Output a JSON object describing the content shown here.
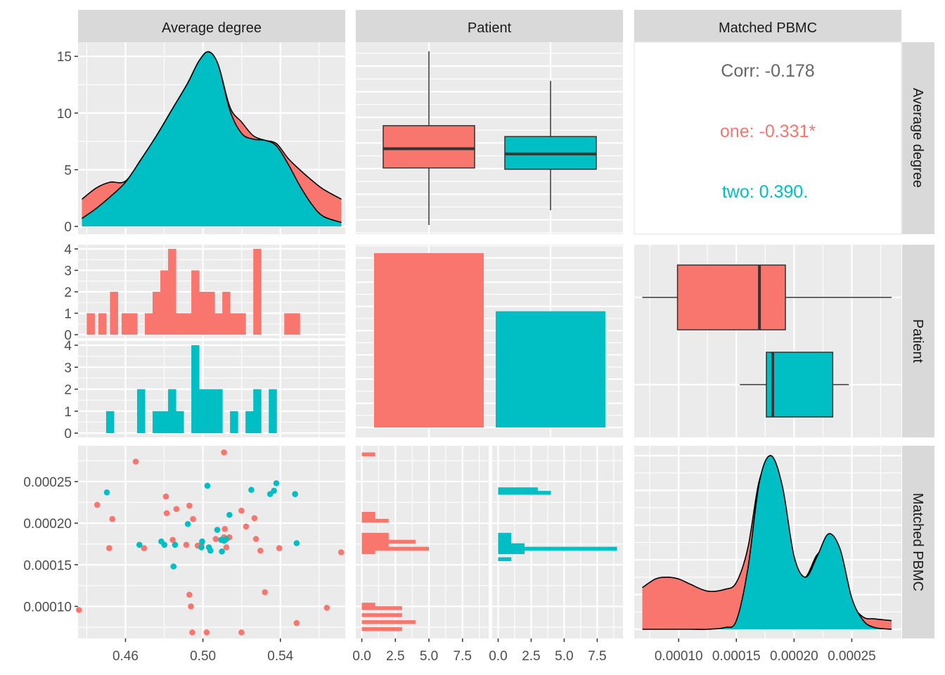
{
  "chart_data": {
    "type": "scatter",
    "title": "",
    "variables": [
      "Average degree",
      "Patient",
      "Matched PBMC"
    ],
    "groups": [
      {
        "name": "one",
        "color": "#F8766D"
      },
      {
        "name": "two",
        "color": "#00BFC4"
      }
    ],
    "colors": {
      "panel_bg": "#EBEBEB",
      "strip_bg": "#D9D9D9",
      "grid": "#FFFFFF",
      "outline": "#000000",
      "box_line": "#333333",
      "tick_text": "#4D4D4D",
      "corr_overall": "#666666"
    },
    "axes": {
      "average_degree": {
        "range": [
          0.4355,
          0.5735
        ],
        "ticks": [
          0.46,
          0.5,
          0.54
        ],
        "tick_labels": [
          "0.46",
          "0.50",
          "0.54"
        ]
      },
      "matched_pbmc": {
        "range": [
          6.15e-05,
          0.000293
        ],
        "ticks": [
          0.0001,
          0.00015,
          0.0002,
          0.00025
        ],
        "tick_labels": [
          "0.00010",
          "0.00015",
          "0.00020",
          "0.00025"
        ]
      },
      "density_y": {
        "range": [
          0,
          16
        ],
        "ticks": [
          0,
          5,
          10,
          15
        ],
        "tick_labels": [
          "0",
          "5",
          "10",
          "15"
        ]
      },
      "hist_y": {
        "range": [
          0,
          4.1
        ],
        "ticks": [
          0,
          1,
          2,
          3,
          4
        ],
        "tick_labels": [
          "0",
          "1",
          "2",
          "3",
          "4"
        ]
      },
      "hist_count_x": {
        "range": [
          -0.45,
          9.45
        ],
        "ticks": [
          0,
          2.5,
          5,
          7.5
        ],
        "tick_labels": [
          "0.0",
          "2.5",
          "5.0",
          "7.5"
        ]
      }
    },
    "panels": {
      "density_average_degree": {
        "type": "area",
        "x": [
          0.4375,
          0.445,
          0.452,
          0.46,
          0.468,
          0.476,
          0.484,
          0.492,
          0.498,
          0.503,
          0.508,
          0.514,
          0.52,
          0.526,
          0.532,
          0.538,
          0.544,
          0.55,
          0.556,
          0.562,
          0.5715
        ],
        "series": [
          {
            "name": "one",
            "values": [
              2.4,
              3.4,
              3.9,
              4.0,
              5.9,
              8.0,
              10.3,
              12.6,
              14.6,
              15.4,
              14.2,
              10.5,
              9.2,
              8.0,
              7.6,
              7.3,
              6.0,
              5.0,
              4.1,
              3.3,
              2.4
            ]
          },
          {
            "name": "two",
            "values": [
              0.7,
              1.6,
              2.6,
              3.9,
              5.9,
              8.0,
              10.3,
              12.6,
              14.6,
              15.4,
              14.2,
              10.2,
              8.2,
              7.7,
              7.6,
              7.1,
              5.5,
              3.6,
              2.0,
              0.9,
              0.35
            ]
          }
        ]
      },
      "boxplot_average_degree_by_patient": {
        "type": "box",
        "categories": [
          "one",
          "two"
        ],
        "stats": [
          {
            "group": "one",
            "lower": 0.436,
            "q1": 0.4805,
            "median": 0.4955,
            "q3": 0.5135,
            "upper": 0.5715
          },
          {
            "group": "two",
            "lower": 0.4475,
            "q1": 0.4795,
            "median": 0.4915,
            "q3": 0.505,
            "upper": 0.5485
          }
        ]
      },
      "correlation": {
        "overall_label": "Corr: -0.178",
        "group_labels": [
          {
            "group": "one",
            "text": "one: -0.331*"
          },
          {
            "group": "two",
            "text": "two: 0.390."
          }
        ]
      },
      "histogram_average_degree_by_patient": {
        "type": "bar",
        "bin_width": 0.004,
        "series": [
          {
            "name": "one",
            "bins": [
              [
                0.44,
                1
              ],
              [
                0.446,
                1
              ],
              [
                0.452,
                2
              ],
              [
                0.458,
                1
              ],
              [
                0.462,
                1
              ],
              [
                0.47,
                1
              ],
              [
                0.474,
                2
              ],
              [
                0.478,
                3
              ],
              [
                0.482,
                4
              ],
              [
                0.486,
                1
              ],
              [
                0.49,
                1
              ],
              [
                0.494,
                3
              ],
              [
                0.498,
                2
              ],
              [
                0.502,
                2
              ],
              [
                0.506,
                1
              ],
              [
                0.51,
                2
              ],
              [
                0.514,
                1
              ],
              [
                0.518,
                1
              ],
              [
                0.526,
                4
              ],
              [
                0.542,
                1
              ],
              [
                0.546,
                1
              ]
            ]
          },
          {
            "name": "two",
            "bins": [
              [
                0.45,
                1
              ],
              [
                0.466,
                2
              ],
              [
                0.474,
                1
              ],
              [
                0.478,
                1
              ],
              [
                0.482,
                2
              ],
              [
                0.486,
                1
              ],
              [
                0.494,
                4
              ],
              [
                0.498,
                2
              ],
              [
                0.502,
                2
              ],
              [
                0.506,
                2
              ],
              [
                0.514,
                1
              ],
              [
                0.522,
                1
              ],
              [
                0.526,
                2
              ],
              [
                0.534,
                2
              ]
            ]
          }
        ]
      },
      "bar_patient_counts": {
        "type": "bar",
        "categories": [
          "one",
          "two"
        ],
        "values": [
          36,
          24
        ]
      },
      "boxplot_matched_pbmc_by_patient": {
        "type": "box",
        "orientation": "horizontal",
        "stats": [
          {
            "group": "one",
            "lower": 6.85e-05,
            "q1": 9.9e-05,
            "median": 0.00017,
            "q3": 0.0001925,
            "upper": 0.0002845
          },
          {
            "group": "two",
            "lower": 0.000153,
            "q1": 0.000176,
            "median": 0.0001815,
            "q3": 0.0002335,
            "upper": 0.0002475
          }
        ]
      },
      "scatter_matched_pbmc_vs_average_degree": {
        "type": "scatter",
        "series": [
          {
            "name": "one",
            "points": [
              [
                0.436,
                9.57e-05
              ],
              [
                0.4454,
                0.000222
              ],
              [
                0.4532,
                0.000205
              ],
              [
                0.4516,
                0.00017
              ],
              [
                0.4653,
                0.000274
              ],
              [
                0.4696,
                0.00017
              ],
              [
                0.4809,
                0.000232
              ],
              [
                0.4813,
                0.000212
              ],
              [
                0.4844,
                0.00018
              ],
              [
                0.4863,
                0.000217
              ],
              [
                0.493,
                0.000221
              ],
              [
                0.4914,
                0.000174
              ],
              [
                0.493,
                0.000114
              ],
              [
                0.4938,
                0.0001
              ],
              [
                0.4945,
                6.87e-05
              ],
              [
                0.4949,
                0.000205
              ],
              [
                0.5019,
                6.87e-05
              ],
              [
                0.5109,
                0.000285
              ],
              [
                0.5113,
                0.000193
              ],
              [
                0.5109,
                0.000183
              ],
              [
                0.5137,
                0.000183
              ],
              [
                0.5199,
                0.000215
              ],
              [
                0.5199,
                6.87e-05
              ],
              [
                0.5223,
                0.000196
              ],
              [
                0.5274,
                0.000181
              ],
              [
                0.5297,
                0.000167
              ],
              [
                0.532,
                0.000117
              ],
              [
                0.5394,
                0.00017
              ],
              [
                0.5484,
                8e-05
              ],
              [
                0.564,
                9.83e-05
              ],
              [
                0.5714,
                0.000165
              ],
              [
                0.5066,
                0.000181
              ],
              [
                0.5121,
                0.000171
              ],
              [
                0.4973,
                0.000173
              ],
              [
                0.4992,
                0.000174
              ],
              [
                0.5266,
                0.000206
              ]
            ]
          },
          {
            "name": "two",
            "points": [
              [
                0.4504,
                0.000237
              ],
              [
                0.4672,
                0.000174
              ],
              [
                0.4785,
                0.000178
              ],
              [
                0.4801,
                0.000174
              ],
              [
                0.4856,
                0.000174
              ],
              [
                0.4848,
                0.000148
              ],
              [
                0.4922,
                0.000199
              ],
              [
                0.4992,
                0.000171
              ],
              [
                0.4996,
                0.000178
              ],
              [
                0.5023,
                0.000245
              ],
              [
                0.5031,
                0.000171
              ],
              [
                0.5039,
                0.000167
              ],
              [
                0.5074,
                0.000192
              ],
              [
                0.5098,
                0.000166
              ],
              [
                0.5094,
                0.00018
              ],
              [
                0.5121,
                0.000181
              ],
              [
                0.5137,
                0.00021
              ],
              [
                0.525,
                0.00024
              ],
              [
                0.5347,
                0.000235
              ],
              [
                0.5367,
                0.000239
              ],
              [
                0.5379,
                0.000248
              ],
              [
                0.5476,
                0.000235
              ],
              [
                0.5484,
                0.000176
              ],
              [
                0.5109,
                0.000179
              ]
            ]
          }
        ]
      },
      "histogram_matched_pbmc_by_patient": {
        "type": "bar",
        "orientation": "horizontal",
        "bin_width": 4.2e-06,
        "series": [
          {
            "name": "one",
            "bins": [
              [
                7.08e-05,
                3
              ],
              [
                7.92e-05,
                4
              ],
              [
                8.76e-05,
                3
              ],
              [
                9.6e-05,
                3
              ],
              [
                0.0001002,
                1
              ],
              [
                0.0001632,
                1
              ],
              [
                0.0001674,
                5
              ],
              [
                0.0001716,
                2
              ],
              [
                0.0001758,
                4
              ],
              [
                0.00018,
                2
              ],
              [
                0.0001842,
                2
              ],
              [
                0.000201,
                2
              ],
              [
                0.0002052,
                1
              ],
              [
                0.0002094,
                1
              ],
              [
                0.0002808,
                1
              ]
            ]
          },
          {
            "name": "two",
            "bins": [
              [
                0.0001548,
                1
              ],
              [
                0.0001632,
                2
              ],
              [
                0.0001674,
                9
              ],
              [
                0.0001716,
                2
              ],
              [
                0.0001758,
                1
              ],
              [
                0.00018,
                1
              ],
              [
                0.0001842,
                1
              ],
              [
                0.0002346,
                4
              ],
              [
                0.0002388,
                3
              ]
            ]
          }
        ]
      },
      "density_matched_pbmc": {
        "type": "area",
        "x": [
          6.85e-05,
          8e-05,
          9e-05,
          0.0001,
          0.00011,
          0.000125,
          0.00014,
          0.00015,
          0.00016,
          0.00017,
          0.00018,
          0.00019,
          0.0002,
          0.00021,
          0.00022,
          0.00023,
          0.00024,
          0.00025,
          0.00026,
          0.00027,
          0.0002845
        ],
        "series": [
          {
            "name": "one",
            "values": [
              0.24,
              0.29,
              0.3,
              0.29,
              0.26,
              0.22,
              0.23,
              0.27,
              0.47,
              0.86,
              0.95,
              0.7,
              0.33,
              0.3,
              0.43,
              0.46,
              0.33,
              0.15,
              0.07,
              0.06,
              0.05
            ]
          },
          {
            "name": "two",
            "values": [
              0.0,
              0.0,
              0.0,
              0.0,
              0.0,
              0.0,
              0.01,
              0.05,
              0.35,
              0.85,
              1.0,
              0.82,
              0.42,
              0.3,
              0.42,
              0.55,
              0.46,
              0.18,
              0.05,
              0.01,
              0.0
            ]
          }
        ],
        "y_relative": true
      }
    }
  }
}
